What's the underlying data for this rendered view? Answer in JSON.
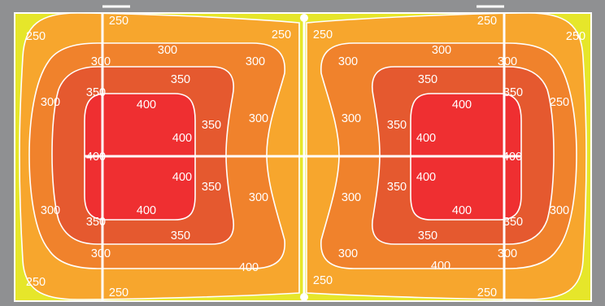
{
  "colors": {
    "background": "#8f9092",
    "level_below_250": "#e6e62a",
    "level_250": "#f7a62d",
    "level_300": "#f0822c",
    "level_350": "#e5592f",
    "level_400": "#ef2f31",
    "contour_line": "#ffffff",
    "court_line": "#ffffff"
  },
  "contour_levels": [
    "250",
    "300",
    "350",
    "400"
  ],
  "labels": {
    "left": {
      "c250": [
        "250",
        "250",
        "250",
        "250",
        "250"
      ],
      "c300": [
        "300",
        "300",
        "300",
        "300",
        "300",
        "300",
        "300",
        "300"
      ],
      "c350": [
        "350",
        "350",
        "350",
        "350",
        "350",
        "350"
      ],
      "c400": [
        "400",
        "400",
        "400",
        "400",
        "400",
        "400"
      ]
    },
    "right": {
      "c250": [
        "250",
        "250",
        "250",
        "250",
        "250",
        "250"
      ],
      "c300": [
        "300",
        "300",
        "300",
        "300",
        "300",
        "300",
        "300",
        "300"
      ],
      "c350": [
        "350",
        "350",
        "350",
        "350",
        "350",
        "350"
      ],
      "c400": [
        "400",
        "400",
        "400",
        "400",
        "400",
        "400"
      ]
    }
  }
}
